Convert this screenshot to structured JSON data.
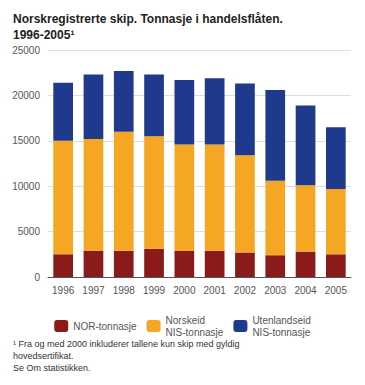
{
  "chart_data": {
    "type": "bar",
    "title": "Norskregistrerte skip. Tonnasje i handelsflåten.\n1996-2005¹",
    "annotations": [
      "¹ Fra og med 2000 inkluderer tallene kun skip med gyldig hovedsertifikat.\nSe Om statistikken."
    ],
    "categories": [
      "1996",
      "1997",
      "1998",
      "1999",
      "2000",
      "2001",
      "2002",
      "2003",
      "2004",
      "2005"
    ],
    "series": [
      {
        "name": "NOR-tonnasje",
        "color": "#8B1A1A",
        "values": [
          2500,
          2900,
          2900,
          3100,
          2900,
          2900,
          2700,
          2400,
          2800,
          2500
        ]
      },
      {
        "name": "Norskeid\nNIS-tonnasje",
        "color": "#F5A623",
        "values": [
          12500,
          12300,
          13100,
          12400,
          11700,
          11700,
          10700,
          8200,
          7300,
          7200
        ]
      },
      {
        "name": "Utenlandseid\nNIS-tonnasje",
        "color": "#1F3A8C",
        "values": [
          6400,
          7100,
          6700,
          6800,
          7100,
          7300,
          7900,
          10000,
          8800,
          6800
        ]
      }
    ],
    "stacked": true,
    "ylim": [
      0,
      25000
    ],
    "yticks": [
      0,
      5000,
      10000,
      15000,
      20000,
      25000
    ],
    "grid": true,
    "legend": "bottom"
  }
}
